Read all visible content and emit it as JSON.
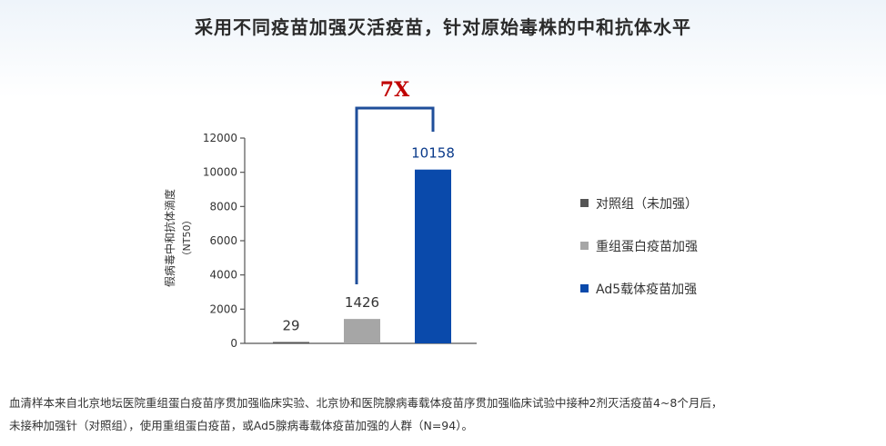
{
  "title": "采用不同疫苗加强灭活疫苗，针对原始毒株的中和抗体水平",
  "chart_data": {
    "type": "bar",
    "categories": [
      "对照组（未加强）",
      "重组蛋白疫苗加强",
      "Ad5载体疫苗加强"
    ],
    "values": [
      29,
      1426,
      10158
    ],
    "value_labels": [
      "29",
      "1426",
      "10158"
    ],
    "colors": [
      "#555555",
      "#a6a6a6",
      "#0a4aab"
    ],
    "value_label_colors": [
      "#333333",
      "#333333",
      "#0a3a8a"
    ],
    "ylabel": "假病毒中和抗体滴度",
    "ylabel_unit": "（NT50）",
    "ylim": [
      0,
      12000
    ],
    "yticks": [
      0,
      2000,
      4000,
      6000,
      8000,
      10000,
      12000
    ],
    "ytick_labels": [
      "0",
      "2000",
      "4000",
      "6000",
      "8000",
      "10000",
      "12000"
    ],
    "annotation": "7X",
    "annotation_color": "#c00000",
    "bracket_color": "#1f4e9a",
    "legend_position": "right"
  },
  "legend": {
    "items": [
      {
        "label": "对照组（未加强）",
        "color": "#555555"
      },
      {
        "label": "重组蛋白疫苗加强",
        "color": "#a6a6a6"
      },
      {
        "label": "Ad5载体疫苗加强",
        "color": "#0a4aab"
      }
    ]
  },
  "footnote": {
    "line1": "血清样本来自北京地坛医院重组蛋白疫苗序贯加强临床实验、北京协和医院腺病毒载体疫苗序贯加强临床试验中接种2剂灭活疫苗4~8个月后，",
    "line2": "未接种加强针（对照组），使用重组蛋白疫苗，或Ad5腺病毒载体疫苗加强的人群（N=94）。"
  }
}
